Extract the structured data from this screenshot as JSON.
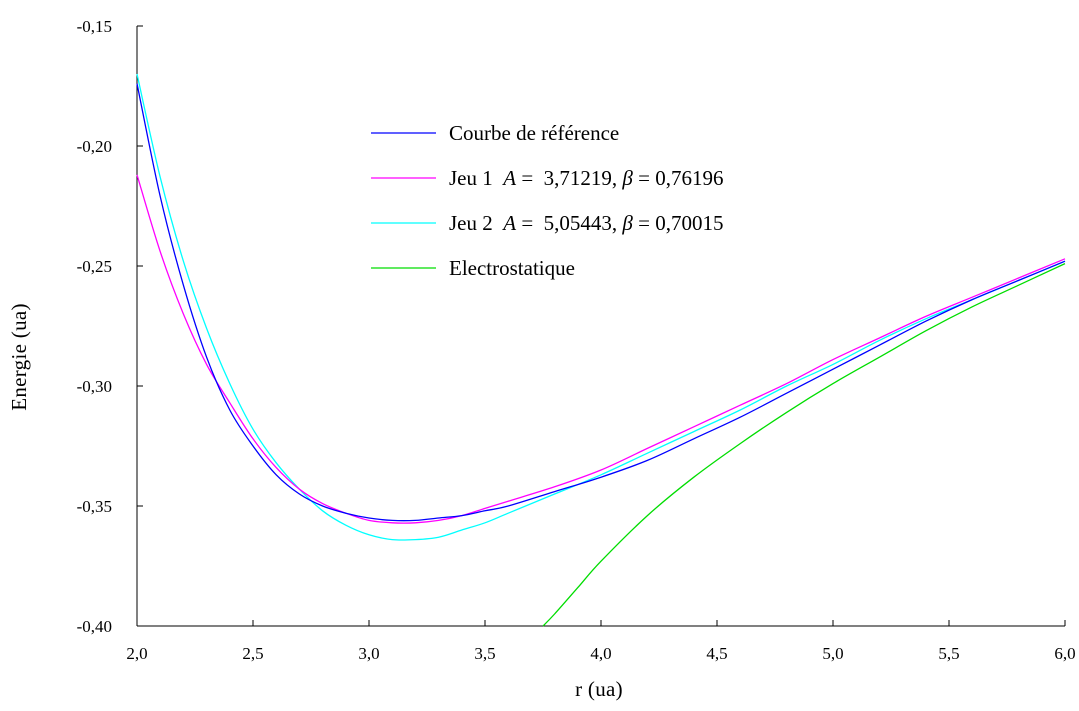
{
  "chart_data": {
    "type": "line",
    "xlabel": "r (ua)",
    "ylabel": "Energie (ua)",
    "xlim": [
      2.0,
      6.0
    ],
    "ylim": [
      -0.4,
      -0.15
    ],
    "x_ticks": [
      "2,0",
      "2,5",
      "3,0",
      "3,5",
      "4,0",
      "4,5",
      "5,0",
      "5,5",
      "6,0"
    ],
    "y_ticks": [
      "-0,15",
      "-0,20",
      "-0,25",
      "-0,30",
      "-0,35",
      "-0,40"
    ],
    "grid": false,
    "legend_position": "top-center",
    "series": [
      {
        "name": "Courbe de référence",
        "color": "#0000ff",
        "x": [
          2.0,
          2.1,
          2.2,
          2.3,
          2.4,
          2.5,
          2.6,
          2.7,
          2.8,
          2.9,
          3.0,
          3.1,
          3.2,
          3.3,
          3.4,
          3.5,
          3.6,
          3.8,
          4.0,
          4.2,
          4.4,
          4.6,
          4.8,
          5.0,
          5.2,
          5.4,
          5.6,
          5.8,
          6.0
        ],
        "y": [
          -0.174,
          -0.221,
          -0.258,
          -0.288,
          -0.31,
          -0.325,
          -0.337,
          -0.345,
          -0.35,
          -0.353,
          -0.355,
          -0.356,
          -0.356,
          -0.355,
          -0.354,
          -0.352,
          -0.35,
          -0.344,
          -0.338,
          -0.331,
          -0.322,
          -0.313,
          -0.303,
          -0.293,
          -0.283,
          -0.273,
          -0.264,
          -0.256,
          -0.248
        ]
      },
      {
        "name": "Jeu 1  A =  3,71219, β = 0,76196",
        "color": "#ff00ff",
        "x": [
          2.0,
          2.1,
          2.2,
          2.3,
          2.4,
          2.5,
          2.6,
          2.7,
          2.8,
          2.9,
          3.0,
          3.1,
          3.2,
          3.3,
          3.4,
          3.5,
          3.6,
          3.8,
          4.0,
          4.2,
          4.4,
          4.6,
          4.8,
          5.0,
          5.2,
          5.4,
          5.6,
          5.8,
          6.0
        ],
        "y": [
          -0.212,
          -0.244,
          -0.27,
          -0.291,
          -0.307,
          -0.322,
          -0.334,
          -0.343,
          -0.349,
          -0.353,
          -0.356,
          -0.357,
          -0.357,
          -0.356,
          -0.354,
          -0.351,
          -0.348,
          -0.342,
          -0.335,
          -0.326,
          -0.317,
          -0.308,
          -0.299,
          -0.289,
          -0.28,
          -0.271,
          -0.263,
          -0.255,
          -0.247
        ]
      },
      {
        "name": "Jeu 2  A =  5,05443, β = 0,70015",
        "color": "#00ffff",
        "x": [
          2.0,
          2.1,
          2.2,
          2.3,
          2.4,
          2.5,
          2.6,
          2.7,
          2.8,
          2.9,
          3.0,
          3.1,
          3.2,
          3.3,
          3.4,
          3.5,
          3.6,
          3.8,
          4.0,
          4.2,
          4.4,
          4.6,
          4.8,
          5.0,
          5.2,
          5.4,
          5.6,
          5.8,
          6.0
        ],
        "y": [
          -0.17,
          -0.213,
          -0.248,
          -0.276,
          -0.299,
          -0.318,
          -0.332,
          -0.343,
          -0.352,
          -0.358,
          -0.362,
          -0.364,
          -0.364,
          -0.363,
          -0.36,
          -0.357,
          -0.353,
          -0.345,
          -0.337,
          -0.328,
          -0.319,
          -0.31,
          -0.3,
          -0.291,
          -0.281,
          -0.272,
          -0.264,
          -0.256,
          -0.248
        ]
      },
      {
        "name": "Electrostatique",
        "color": "#00dd00",
        "x": [
          3.75,
          3.8,
          3.9,
          4.0,
          4.2,
          4.4,
          4.6,
          4.8,
          5.0,
          5.2,
          5.4,
          5.6,
          5.8,
          6.0
        ],
        "y": [
          -0.4,
          -0.395,
          -0.384,
          -0.373,
          -0.354,
          -0.338,
          -0.324,
          -0.311,
          -0.299,
          -0.288,
          -0.277,
          -0.267,
          -0.258,
          -0.249
        ]
      }
    ]
  },
  "legend": {
    "items": [
      {
        "label": "Courbe de référence"
      },
      {
        "pre": "Jeu 1  ",
        "a_sym": "A",
        "mid": " =  3,71219, ",
        "b_sym": "β",
        "post": " = 0,76196"
      },
      {
        "pre": "Jeu 2  ",
        "a_sym": "A",
        "mid": " =  5,05443, ",
        "b_sym": "β",
        "post": " = 0,70015"
      },
      {
        "label": "Electrostatique"
      }
    ]
  }
}
